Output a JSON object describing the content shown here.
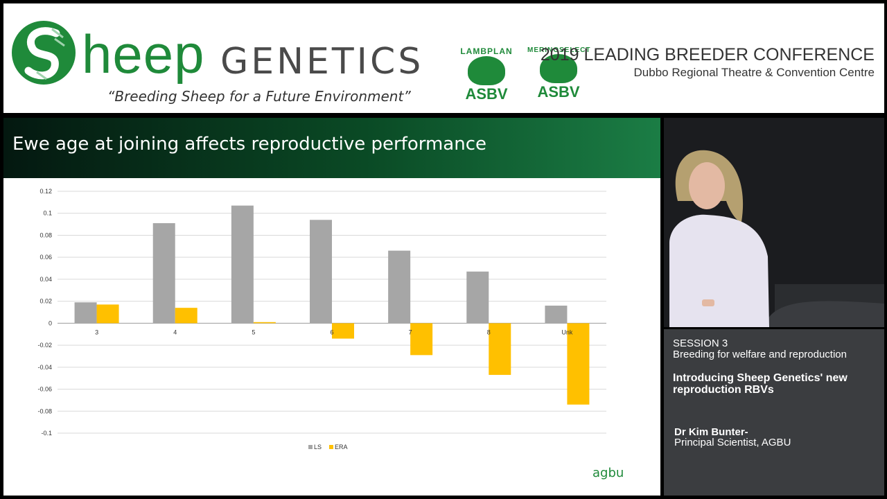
{
  "banner": {
    "brand_s": "S",
    "brand_rest": "heep",
    "brand_genetics": "GENETICS",
    "tagline": "“Breeding Sheep for a Future Environment”",
    "badges": [
      {
        "arc": "LAMBPLAN",
        "label": "ASBV"
      },
      {
        "arc": "MERINOSELECT",
        "label": "ASBV"
      }
    ],
    "conference_title": "2019 LEADING BREEDER CONFERENCE",
    "conference_venue": "Dubbo Regional Theatre & Convention Centre",
    "brand_color": "#1f8a3a"
  },
  "slide": {
    "title": "Ewe age at joining affects reproductive performance",
    "footer_logo": "agbu"
  },
  "chart_data": {
    "type": "bar",
    "categories": [
      "3",
      "4",
      "5",
      "6",
      "7",
      "8",
      "Unk"
    ],
    "series": [
      {
        "name": "LS",
        "color": "#a6a6a6",
        "values": [
          0.019,
          0.091,
          0.107,
          0.094,
          0.066,
          0.047,
          0.016
        ]
      },
      {
        "name": "ERA",
        "color": "#ffc000",
        "values": [
          0.017,
          0.014,
          0.001,
          -0.014,
          -0.029,
          -0.047,
          -0.074
        ]
      }
    ],
    "yticks": [
      0.12,
      0.1,
      0.08,
      0.06,
      0.04,
      0.02,
      0,
      -0.02,
      -0.04,
      -0.06,
      -0.08,
      -0.1
    ],
    "ylim": [
      -0.1,
      0.12
    ],
    "grid": true,
    "legend_position": "bottom"
  },
  "info": {
    "session": "SESSION 3",
    "session_topic": "Breeding for welfare and reproduction",
    "talk_title": "Introducing Sheep Genetics' new reproduction RBVs",
    "speaker": "Dr Kim Bunter-",
    "speaker_role": "Principal Scientist, AGBU"
  }
}
